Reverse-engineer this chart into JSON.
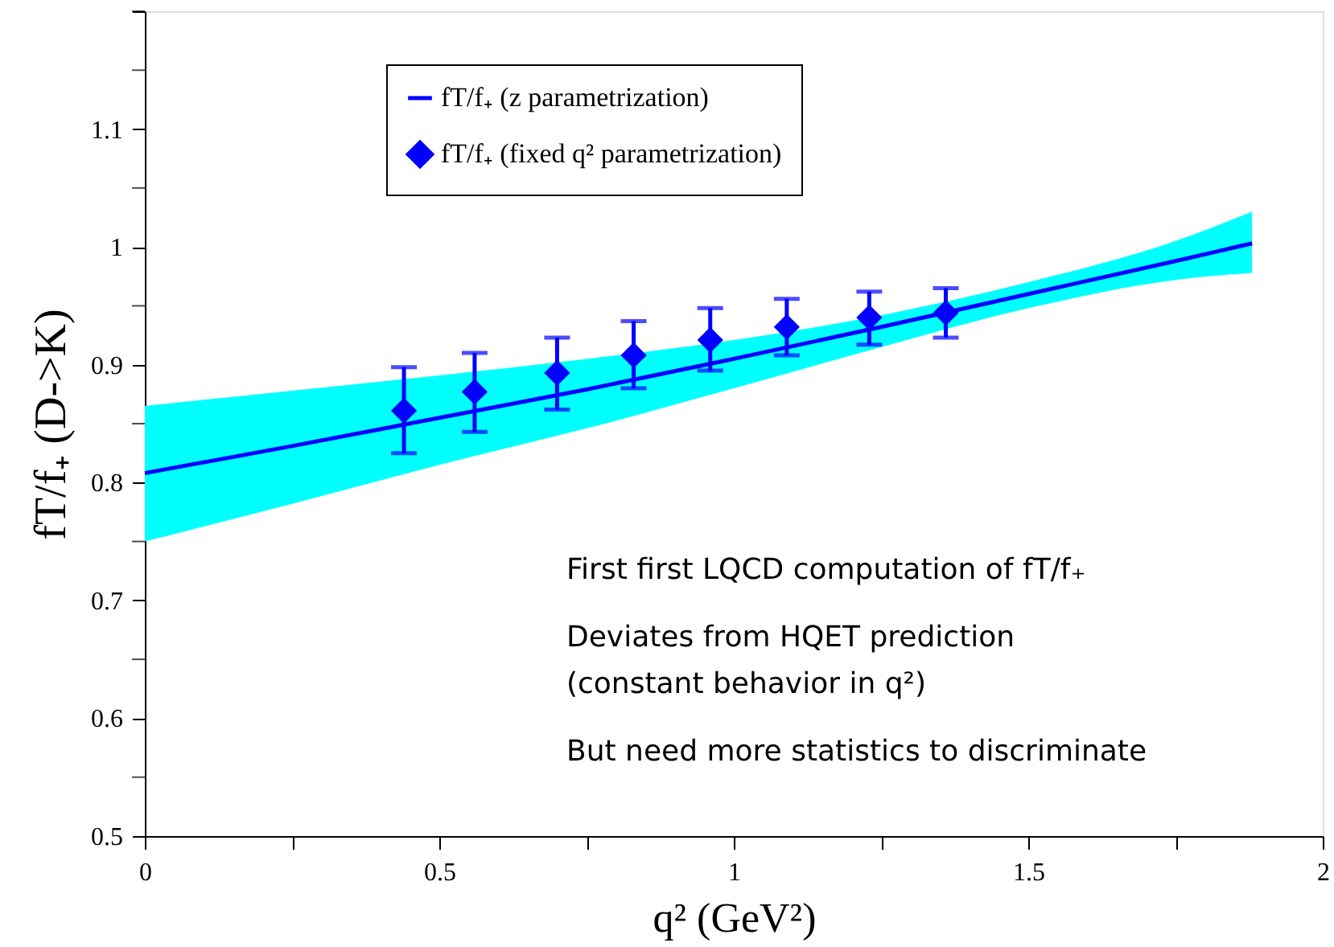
{
  "chart_data": {
    "type": "line",
    "xlabel": "q² (GeV²)",
    "ylabel": "fT/f₊ (D->K)",
    "xlim": [
      0,
      2
    ],
    "ylim": [
      0.5,
      1.2
    ],
    "xticks": [
      0,
      {
        "value": 0.25,
        "label": null
      },
      0.5,
      {
        "value": 0.75,
        "label": null
      },
      1,
      {
        "value": 1.25,
        "label": null
      },
      1.5,
      {
        "value": 1.75,
        "label": null
      },
      2
    ],
    "yticks": [
      0.5,
      {
        "value": 0.55,
        "label": null
      },
      0.6,
      {
        "value": 0.65,
        "label": null
      },
      0.7,
      {
        "value": 0.75,
        "label": null
      },
      0.8,
      {
        "value": 0.85,
        "label": null
      },
      0.9,
      {
        "value": 0.95,
        "label": null
      },
      1,
      {
        "value": 1.05,
        "label": null
      },
      1.1,
      {
        "value": 1.15,
        "label": null
      },
      {
        "value": 1.2,
        "label": null
      }
    ],
    "grid": false,
    "legend": "top left",
    "series": [
      {
        "name": "fT/f₊ (z parametrization)",
        "color": "#0000ff",
        "line_style": "solid",
        "x": [
          0,
          0.25,
          0.5,
          0.75,
          1.0,
          1.25,
          1.5,
          1.75,
          1.88
        ],
        "values": [
          0.808,
          0.831,
          0.855,
          0.879,
          0.905,
          0.932,
          0.96,
          0.988,
          1.003
        ],
        "lower": [
          0.75,
          0.782,
          0.815,
          0.846,
          0.88,
          0.915,
          0.948,
          0.972,
          0.978
        ],
        "upper": [
          0.865,
          0.878,
          0.891,
          0.905,
          0.921,
          0.942,
          0.97,
          1.005,
          1.03
        ]
      },
      {
        "name": "fT/f₊ (fixed q² parametrization)",
        "type": "scatter",
        "color": "#0000ff",
        "marker": "diamond",
        "x": [
          0.44,
          0.56,
          0.7,
          0.83,
          0.96,
          1.09,
          1.23,
          1.36
        ],
        "values": [
          0.861,
          0.877,
          0.893,
          0.908,
          0.921,
          0.932,
          0.94,
          0.944
        ],
        "errors": [
          [
            0.825,
            0.898
          ],
          [
            0.843,
            0.91
          ],
          [
            0.862,
            0.923
          ],
          [
            0.88,
            0.937
          ],
          [
            0.895,
            0.948
          ],
          [
            0.908,
            0.956
          ],
          [
            0.917,
            0.962
          ],
          [
            0.923,
            0.965
          ]
        ]
      }
    ],
    "annotations": [
      "First first LQCD computation of fT/f₊",
      "Deviates from HQET prediction\n(constant behavior in q²)",
      "But need more statistics to discriminate"
    ]
  }
}
